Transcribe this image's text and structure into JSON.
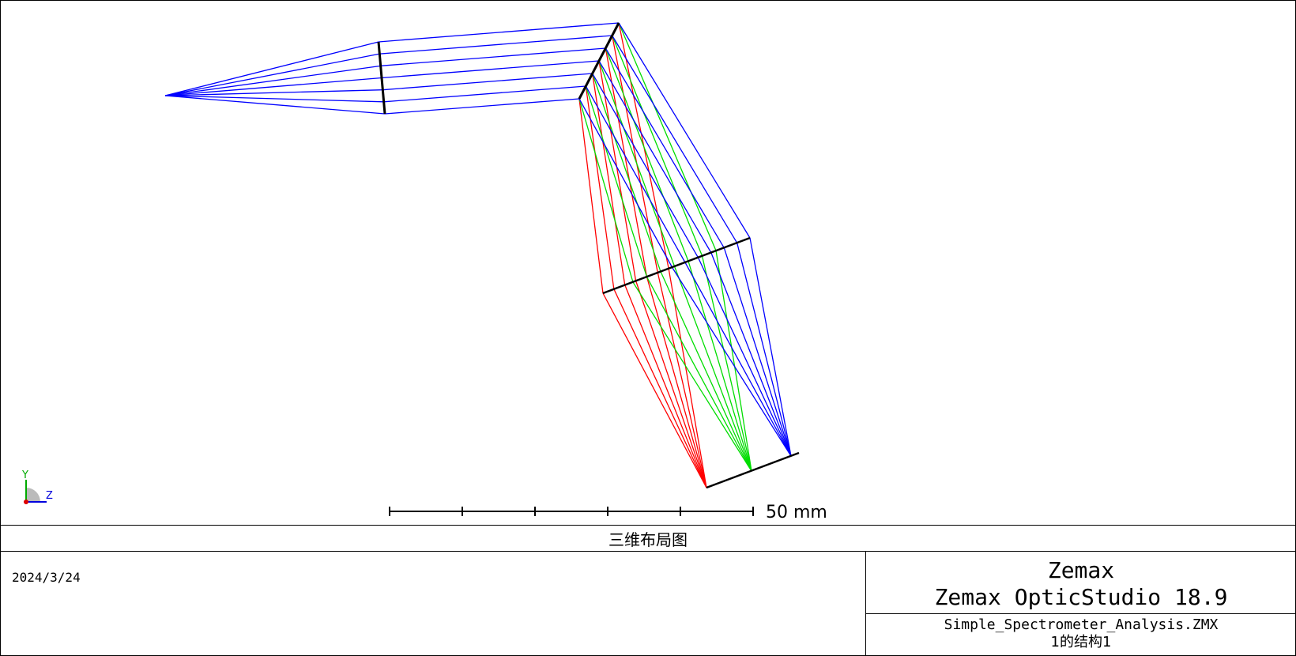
{
  "plot": {
    "title": "三维布局图",
    "scale_bar": {
      "label": "50 mm",
      "length_mm": 50,
      "divisions": 5
    },
    "axis_triad": {
      "y_label": "Y",
      "z_label": "Z"
    },
    "wavelength_colors": [
      "#ff0000",
      "#00dd00",
      "#0000ff"
    ],
    "surface_color": "#000000"
  },
  "footer": {
    "date": "2024/3/24",
    "company": "Zemax",
    "product": "Zemax OpticStudio 18.9",
    "filename": "Simple_Spectrometer_Analysis.ZMX",
    "configuration": "1的结构1"
  }
}
